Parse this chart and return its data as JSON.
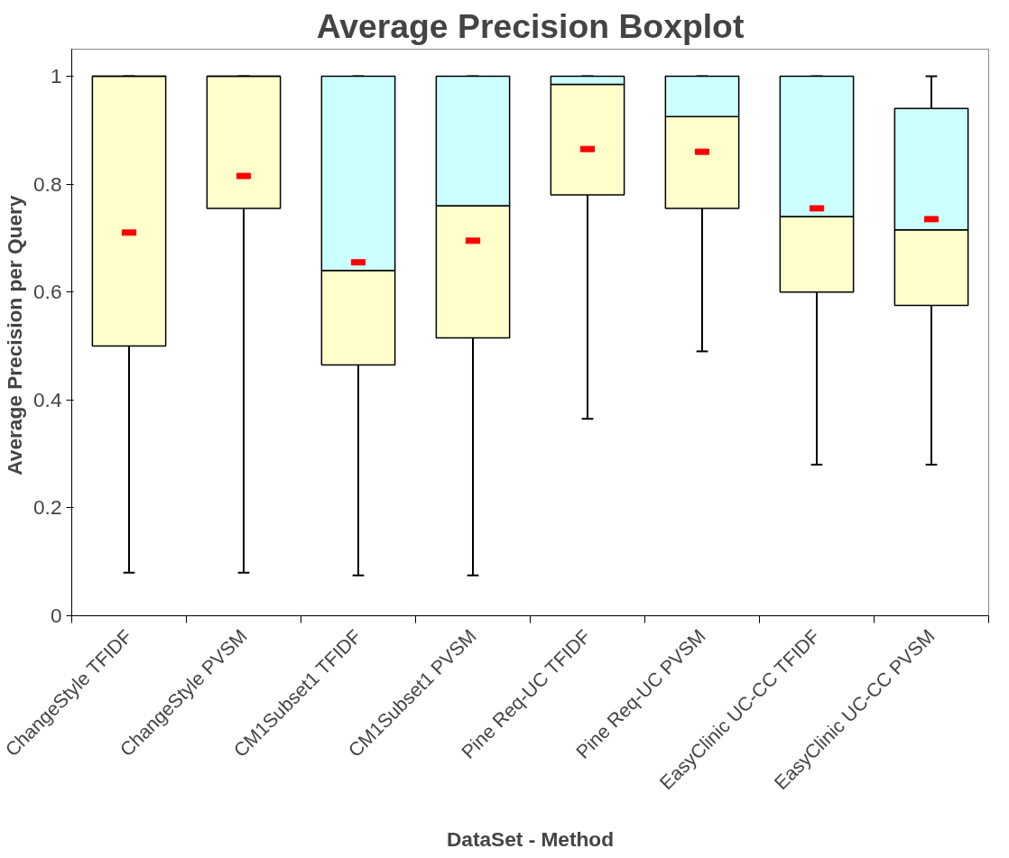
{
  "chart_data": {
    "type": "box",
    "title": "Average Precision Boxplot",
    "xlabel": "DataSet - Method",
    "ylabel": "Average Precision  per Query",
    "categories": [
      "ChangeStyle TFIDF",
      "ChangeStyle PVSM",
      "CM1Subset1 TFIDF",
      "CM1Subset1 PVSM",
      "Pine Req-UC TFIDF",
      "Pine Req-UC PVSM",
      "EasyClinic UC-CC TFIDF",
      "EasyClinic UC-CC PVSM"
    ],
    "colors": [
      "#ccffff",
      "#ccffff",
      "#ccffff",
      "#ccffff",
      "#ccffff",
      "#ccffff",
      "#ccffff",
      "#ccffff"
    ],
    "series": [
      {
        "color": "#ffffcc",
        "boxes": [
          {
            "low": 0.08,
            "q1": 0.5,
            "median": 1.0,
            "q3": 1.0,
            "high": 1.0,
            "mean": 0.71
          },
          {
            "low": 0.08,
            "q1": 0.755,
            "median": 1.0,
            "q3": 1.0,
            "high": 1.0,
            "mean": 0.815
          },
          {
            "low": 0.075,
            "q1": 0.465,
            "median": 0.64,
            "q3": 1.0,
            "high": 1.0,
            "mean": 0.655
          },
          {
            "low": 0.075,
            "q1": 0.515,
            "median": 0.76,
            "q3": 1.0,
            "high": 1.0,
            "mean": 0.695
          },
          {
            "low": 0.365,
            "q1": 0.78,
            "median": 0.985,
            "q3": 1.0,
            "high": 1.0,
            "mean": 0.865
          },
          {
            "low": 0.49,
            "q1": 0.755,
            "median": 0.925,
            "q3": 1.0,
            "high": 1.0,
            "mean": 0.86
          },
          {
            "low": 0.28,
            "q1": 0.6,
            "median": 0.74,
            "q3": 1.0,
            "high": 1.0,
            "mean": 0.755
          },
          {
            "low": 0.28,
            "q1": 0.575,
            "median": 0.715,
            "q3": 0.94,
            "high": 1.0,
            "mean": 0.735
          }
        ]
      }
    ],
    "ylim": [
      0,
      1.05
    ],
    "yticks": [
      0,
      0.2,
      0.4,
      0.6,
      0.8,
      1
    ]
  }
}
